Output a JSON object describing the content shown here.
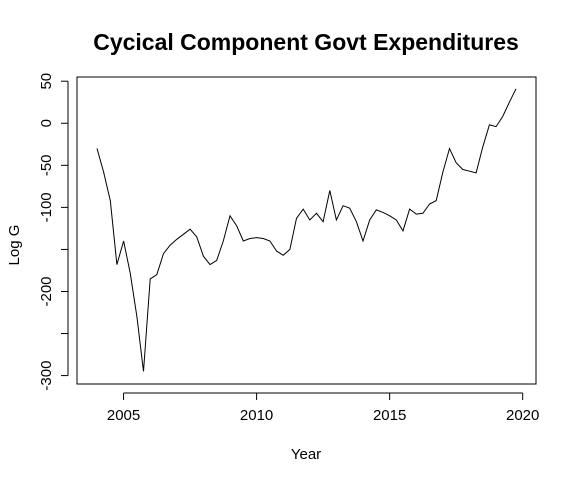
{
  "chart_data": {
    "type": "line",
    "title": "Cycical Component Govt Expenditures",
    "xlabel": "Year",
    "ylabel": "Log G",
    "xlim": [
      2003.25,
      2020.5
    ],
    "ylim": [
      -310,
      55
    ],
    "x_ticks": [
      2005,
      2010,
      2015,
      2020
    ],
    "y_ticks": [
      50,
      0,
      -50,
      -100,
      -150,
      -200,
      -250,
      -300
    ],
    "y_tick_labels": [
      "50",
      "0",
      "-50",
      "-100",
      "",
      "-200",
      "",
      "-300"
    ],
    "grid": false,
    "legend": "none",
    "line_color": "#000000",
    "series": [
      {
        "x": [
          2004.0,
          2004.25,
          2004.5,
          2004.75,
          2005.0,
          2005.25,
          2005.5,
          2005.75,
          2006.0,
          2006.25,
          2006.5,
          2006.75,
          2007.0,
          2007.25,
          2007.5,
          2007.75,
          2008.0,
          2008.25,
          2008.5,
          2008.75,
          2009.0,
          2009.25,
          2009.5,
          2009.75,
          2010.0,
          2010.25,
          2010.5,
          2010.75,
          2011.0,
          2011.25,
          2011.5,
          2011.75,
          2012.0,
          2012.25,
          2012.5,
          2012.75,
          2013.0,
          2013.25,
          2013.5,
          2013.75,
          2014.0,
          2014.25,
          2014.5,
          2014.75,
          2015.0,
          2015.25,
          2015.5,
          2015.75,
          2016.0,
          2016.25,
          2016.5,
          2016.75,
          2017.0,
          2017.25,
          2017.5,
          2017.75,
          2018.0,
          2018.25,
          2018.5,
          2018.75,
          2019.0,
          2019.25,
          2019.5,
          2019.75
        ],
        "y": [
          -30,
          -58,
          -92,
          -168,
          -140,
          -178,
          -230,
          -295,
          -185,
          -180,
          -155,
          -145,
          -138,
          -132,
          -126,
          -135,
          -158,
          -168,
          -163,
          -140,
          -110,
          -122,
          -140,
          -137,
          -136,
          -137,
          -140,
          -152,
          -157,
          -150,
          -113,
          -102,
          -115,
          -107,
          -117,
          -80,
          -115,
          -98,
          -101,
          -117,
          -140,
          -115,
          -103,
          -106,
          -110,
          -115,
          -128,
          -102,
          -108,
          -107,
          -96,
          -92,
          -58,
          -30,
          -47,
          -55,
          -57,
          -59,
          -28,
          -2,
          -4,
          8,
          25,
          41
        ]
      }
    ]
  }
}
